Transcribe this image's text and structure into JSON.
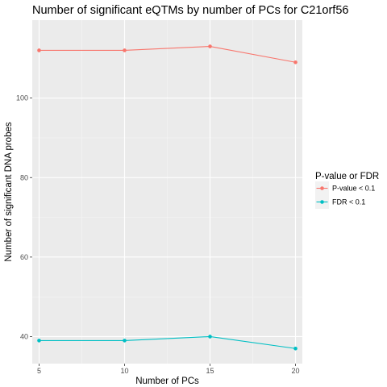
{
  "chart_data": {
    "type": "line",
    "title": "Number of significant eQTMs by number of PCs for C21orf56",
    "xlabel": "Number of PCs",
    "ylabel": "Number of significant DNA probes",
    "x": [
      5,
      10,
      15,
      20
    ],
    "x_ticks": [
      "5",
      "10",
      "15",
      "20"
    ],
    "xlim": [
      4.6,
      20.4
    ],
    "y_ticks": [
      "40",
      "60",
      "80",
      "100"
    ],
    "y_tick_values": [
      40,
      60,
      80,
      100
    ],
    "ylim": [
      33.2,
      119.6
    ],
    "grid": true,
    "legend": {
      "title": "P-value or FDR",
      "placement": "right"
    },
    "series": [
      {
        "name": "P-value < 0.1",
        "values": [
          112,
          112,
          113,
          109
        ],
        "color": "#F8766D"
      },
      {
        "name": "FDR < 0.1",
        "values": [
          39,
          39,
          40,
          37
        ],
        "color": "#00BFC4"
      }
    ]
  }
}
